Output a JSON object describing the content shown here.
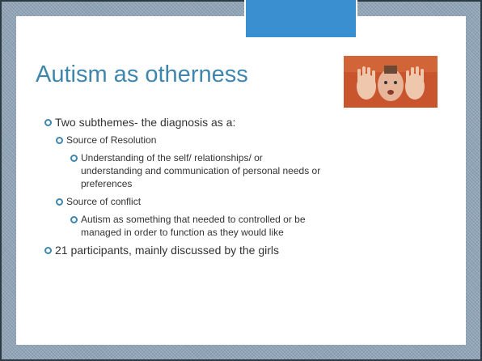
{
  "slide": {
    "title": "Autism as otherness",
    "bullets": [
      {
        "level": 0,
        "text": "Two subthemes- the diagnosis as a:"
      },
      {
        "level": 1,
        "text": "Source of Resolution"
      },
      {
        "level": 2,
        "text": "Understanding of the self/ relationships/ or understanding and communication of personal needs or preferences"
      },
      {
        "level": 1,
        "text": "Source  of conflict"
      },
      {
        "level": 2,
        "text": "Autism as something that needed to controlled or be managed in order to function as they would like"
      },
      {
        "level": 0,
        "text": "21 participants, mainly discussed by the girls"
      }
    ]
  }
}
